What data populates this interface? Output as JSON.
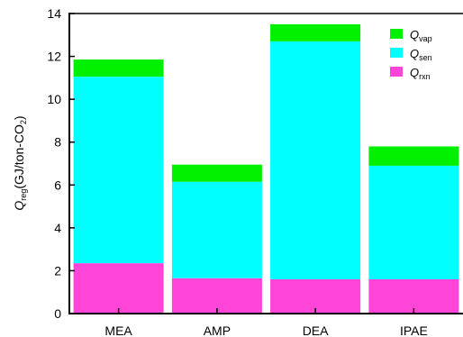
{
  "chart_data": {
    "type": "bar",
    "stacked": true,
    "title": "",
    "ylabel": {
      "main": "Q",
      "main_sub": "reg",
      "units_prefix": "(GJ/ton-CO",
      "units_sub": "2",
      "units_suffix": ")"
    },
    "xlabel": "",
    "ylim": [
      0,
      14
    ],
    "yticks": [
      0,
      2,
      4,
      6,
      8,
      10,
      12,
      14
    ],
    "categories": [
      "MEA",
      "AMP",
      "DEA",
      "IPAE"
    ],
    "series": [
      {
        "name": "Q",
        "sub": "rxn",
        "color": "#ff44d8",
        "values": [
          2.35,
          1.65,
          1.6,
          1.6
        ]
      },
      {
        "name": "Q",
        "sub": "sen",
        "color": "#00ffff",
        "values": [
          8.7,
          4.5,
          11.1,
          5.3
        ]
      },
      {
        "name": "Q",
        "sub": "vap",
        "color": "#00f000",
        "values": [
          0.8,
          0.8,
          0.8,
          0.9
        ]
      }
    ],
    "legend_order": [
      2,
      1,
      0
    ],
    "legend_position": "top-right",
    "grid": false
  }
}
